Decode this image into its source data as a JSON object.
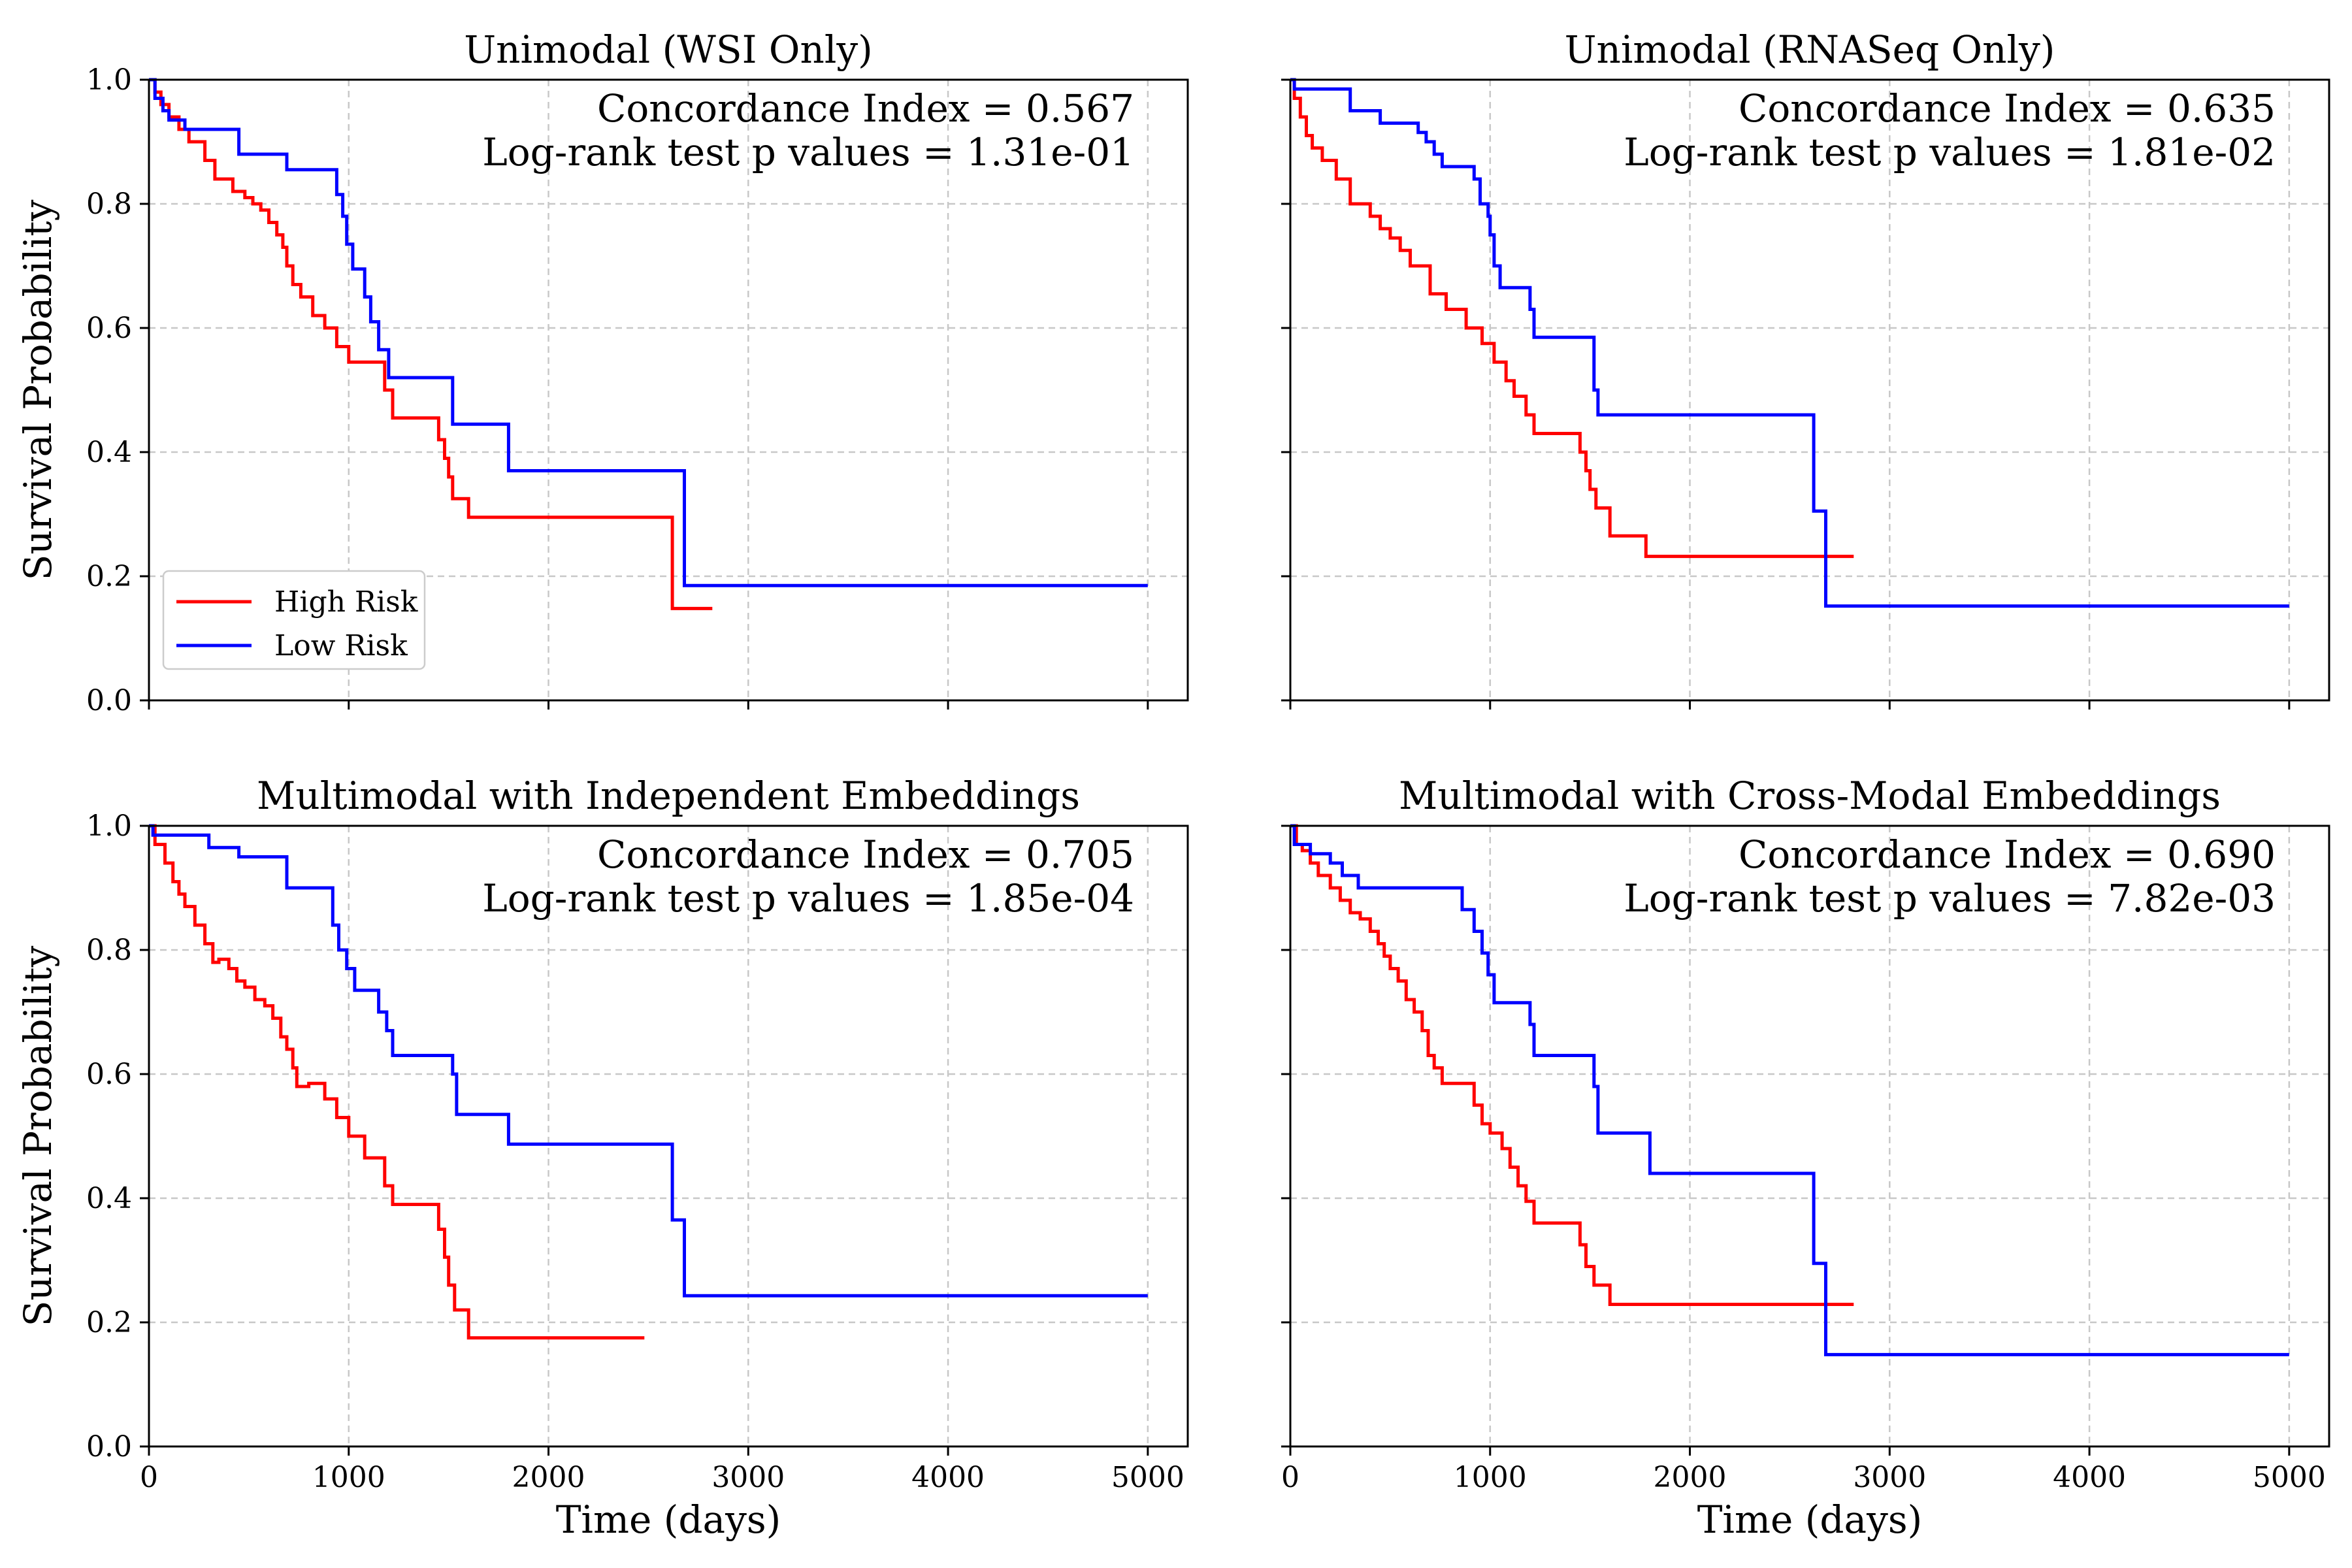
{
  "figure": {
    "colors": {
      "high_risk": "#ff0000",
      "low_risk": "#0000ff",
      "grid": "#c8c8c8"
    },
    "x_ticks": [
      0,
      1000,
      2000,
      3000,
      4000,
      5000
    ],
    "y_ticks": [
      0.0,
      0.2,
      0.4,
      0.6,
      0.8,
      1.0
    ],
    "y_tick_labels": [
      "0.0",
      "0.2",
      "0.4",
      "0.6",
      "0.8",
      "1.0"
    ],
    "x_tick_labels": [
      "0",
      "1000",
      "2000",
      "3000",
      "4000",
      "5000"
    ],
    "ylabel": "Survival Probability",
    "xlabel": "Time (days)",
    "legend": {
      "high": "High Risk",
      "low": "Low Risk"
    }
  },
  "chart_data": [
    {
      "type": "line",
      "title": "Unimodal (WSI Only)",
      "ylabel": "Survival Probability",
      "xlabel": "",
      "xlim": [
        0,
        5200
      ],
      "ylim": [
        0.0,
        1.0
      ],
      "grid": true,
      "legend_position": "lower-left",
      "annotations": [
        "Concordance Index = 0.567",
        "Log-rank test p values = 1.31e-01"
      ],
      "series": [
        {
          "name": "High Risk",
          "x": [
            0,
            30,
            60,
            100,
            150,
            200,
            280,
            330,
            360,
            420,
            480,
            520,
            560,
            600,
            640,
            670,
            690,
            720,
            760,
            820,
            880,
            940,
            1000,
            1180,
            1220,
            1450,
            1480,
            1500,
            1520,
            1600,
            2620,
            2820
          ],
          "y": [
            1.0,
            0.98,
            0.96,
            0.94,
            0.92,
            0.9,
            0.87,
            0.84,
            0.84,
            0.82,
            0.81,
            0.8,
            0.79,
            0.77,
            0.75,
            0.73,
            0.7,
            0.67,
            0.65,
            0.62,
            0.6,
            0.57,
            0.545,
            0.5,
            0.455,
            0.42,
            0.39,
            0.36,
            0.325,
            0.295,
            0.148,
            0.148
          ]
        },
        {
          "name": "Low Risk",
          "x": [
            0,
            30,
            70,
            100,
            180,
            260,
            450,
            690,
            940,
            970,
            990,
            1020,
            1080,
            1110,
            1150,
            1200,
            1520,
            1800,
            2680,
            5000
          ],
          "y": [
            1.0,
            0.97,
            0.95,
            0.935,
            0.92,
            0.92,
            0.88,
            0.855,
            0.815,
            0.78,
            0.735,
            0.695,
            0.65,
            0.61,
            0.565,
            0.52,
            0.445,
            0.37,
            0.185,
            0.185
          ]
        }
      ]
    },
    {
      "type": "line",
      "title": "Unimodal (RNASeq Only)",
      "ylabel": "",
      "xlabel": "",
      "xlim": [
        0,
        5200
      ],
      "ylim": [
        0.0,
        1.0
      ],
      "grid": true,
      "annotations": [
        "Concordance Index = 0.635",
        "Log-rank test p values = 1.81e-02"
      ],
      "series": [
        {
          "name": "High Risk",
          "x": [
            0,
            20,
            50,
            80,
            110,
            160,
            230,
            300,
            350,
            400,
            450,
            500,
            550,
            600,
            700,
            780,
            880,
            960,
            1020,
            1080,
            1120,
            1180,
            1220,
            1450,
            1480,
            1500,
            1530,
            1600,
            1780,
            2820
          ],
          "y": [
            1.0,
            0.97,
            0.94,
            0.91,
            0.89,
            0.87,
            0.84,
            0.8,
            0.8,
            0.78,
            0.76,
            0.745,
            0.725,
            0.7,
            0.655,
            0.63,
            0.6,
            0.575,
            0.545,
            0.515,
            0.49,
            0.46,
            0.43,
            0.4,
            0.37,
            0.34,
            0.31,
            0.265,
            0.232,
            0.232
          ]
        },
        {
          "name": "Low Risk",
          "x": [
            0,
            20,
            300,
            450,
            640,
            680,
            720,
            760,
            920,
            950,
            990,
            1000,
            1020,
            1050,
            1200,
            1220,
            1520,
            1540,
            2620,
            2680,
            5000
          ],
          "y": [
            1.0,
            0.985,
            0.95,
            0.93,
            0.915,
            0.9,
            0.88,
            0.86,
            0.84,
            0.8,
            0.78,
            0.75,
            0.7,
            0.665,
            0.63,
            0.585,
            0.5,
            0.46,
            0.305,
            0.152,
            0.152
          ]
        }
      ]
    },
    {
      "type": "line",
      "title": "Multimodal with Independent Embeddings",
      "ylabel": "Survival Probability",
      "xlabel": "Time (days)",
      "xlim": [
        0,
        5200
      ],
      "ylim": [
        0.0,
        1.0
      ],
      "grid": true,
      "annotations": [
        "Concordance Index = 0.705",
        "Log-rank test p values = 1.85e-04"
      ],
      "series": [
        {
          "name": "High Risk",
          "x": [
            0,
            30,
            80,
            120,
            150,
            180,
            230,
            280,
            320,
            350,
            400,
            440,
            480,
            530,
            580,
            620,
            660,
            690,
            720,
            740,
            800,
            880,
            940,
            1000,
            1080,
            1180,
            1220,
            1450,
            1480,
            1500,
            1530,
            1600,
            2480
          ],
          "y": [
            1.0,
            0.97,
            0.94,
            0.91,
            0.89,
            0.87,
            0.84,
            0.81,
            0.78,
            0.785,
            0.77,
            0.75,
            0.74,
            0.72,
            0.71,
            0.69,
            0.66,
            0.64,
            0.61,
            0.58,
            0.585,
            0.56,
            0.53,
            0.5,
            0.465,
            0.42,
            0.39,
            0.35,
            0.305,
            0.26,
            0.22,
            0.175,
            0.175
          ]
        },
        {
          "name": "Low Risk",
          "x": [
            0,
            20,
            300,
            450,
            690,
            920,
            950,
            990,
            1030,
            1150,
            1190,
            1220,
            1520,
            1540,
            1800,
            2620,
            2680,
            5000
          ],
          "y": [
            1.0,
            0.985,
            0.965,
            0.95,
            0.9,
            0.84,
            0.8,
            0.77,
            0.735,
            0.7,
            0.67,
            0.63,
            0.6,
            0.535,
            0.487,
            0.365,
            0.243,
            0.243
          ]
        }
      ]
    },
    {
      "type": "line",
      "title": "Multimodal with Cross-Modal Embeddings",
      "ylabel": "",
      "xlabel": "Time (days)",
      "xlim": [
        0,
        5200
      ],
      "ylim": [
        0.0,
        1.0
      ],
      "grid": true,
      "annotations": [
        "Concordance Index = 0.690",
        "Log-rank test p values = 7.82e-03"
      ],
      "series": [
        {
          "name": "High Risk",
          "x": [
            0,
            30,
            60,
            100,
            140,
            200,
            250,
            300,
            350,
            400,
            440,
            470,
            500,
            540,
            580,
            620,
            660,
            690,
            720,
            760,
            920,
            960,
            1000,
            1060,
            1100,
            1140,
            1180,
            1220,
            1450,
            1480,
            1520,
            1600,
            2820
          ],
          "y": [
            1.0,
            0.97,
            0.96,
            0.94,
            0.92,
            0.9,
            0.88,
            0.86,
            0.85,
            0.83,
            0.81,
            0.79,
            0.77,
            0.75,
            0.72,
            0.7,
            0.67,
            0.63,
            0.61,
            0.585,
            0.55,
            0.52,
            0.505,
            0.48,
            0.45,
            0.42,
            0.395,
            0.36,
            0.325,
            0.29,
            0.26,
            0.229,
            0.229
          ]
        },
        {
          "name": "Low Risk",
          "x": [
            0,
            20,
            100,
            200,
            260,
            320,
            340,
            860,
            920,
            960,
            990,
            1020,
            1200,
            1220,
            1520,
            1540,
            1800,
            2620,
            2680,
            5000
          ],
          "y": [
            1.0,
            0.97,
            0.955,
            0.94,
            0.92,
            0.92,
            0.9,
            0.865,
            0.83,
            0.795,
            0.76,
            0.715,
            0.68,
            0.63,
            0.58,
            0.505,
            0.44,
            0.295,
            0.148,
            0.148
          ]
        }
      ]
    }
  ]
}
